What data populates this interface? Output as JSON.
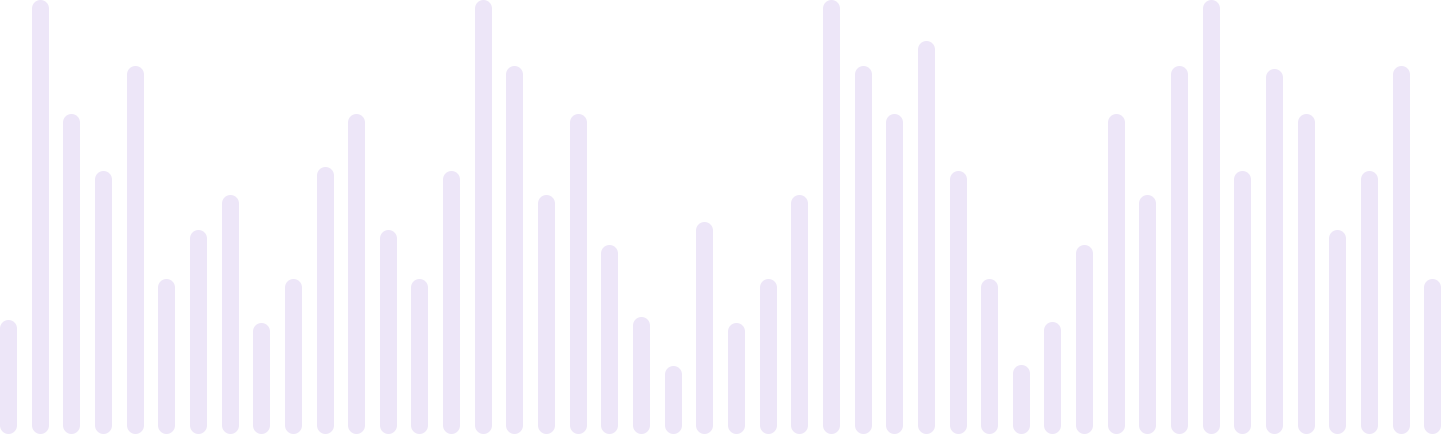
{
  "waveform": {
    "bar_color": "#ede6f8",
    "levels": [
      0.263,
      1.0,
      0.737,
      0.606,
      0.847,
      0.357,
      0.47,
      0.551,
      0.256,
      0.357,
      0.616,
      0.737,
      0.47,
      0.357,
      0.606,
      1.0,
      0.847,
      0.551,
      0.737,
      0.435,
      0.27,
      0.156,
      0.489,
      0.256,
      0.357,
      0.551,
      1.0,
      0.847,
      0.737,
      0.906,
      0.606,
      0.357,
      0.16,
      0.259,
      0.435,
      0.737,
      0.551,
      0.847,
      1.0,
      0.606,
      0.84,
      0.737,
      0.47,
      0.606,
      0.847,
      0.357
    ]
  }
}
